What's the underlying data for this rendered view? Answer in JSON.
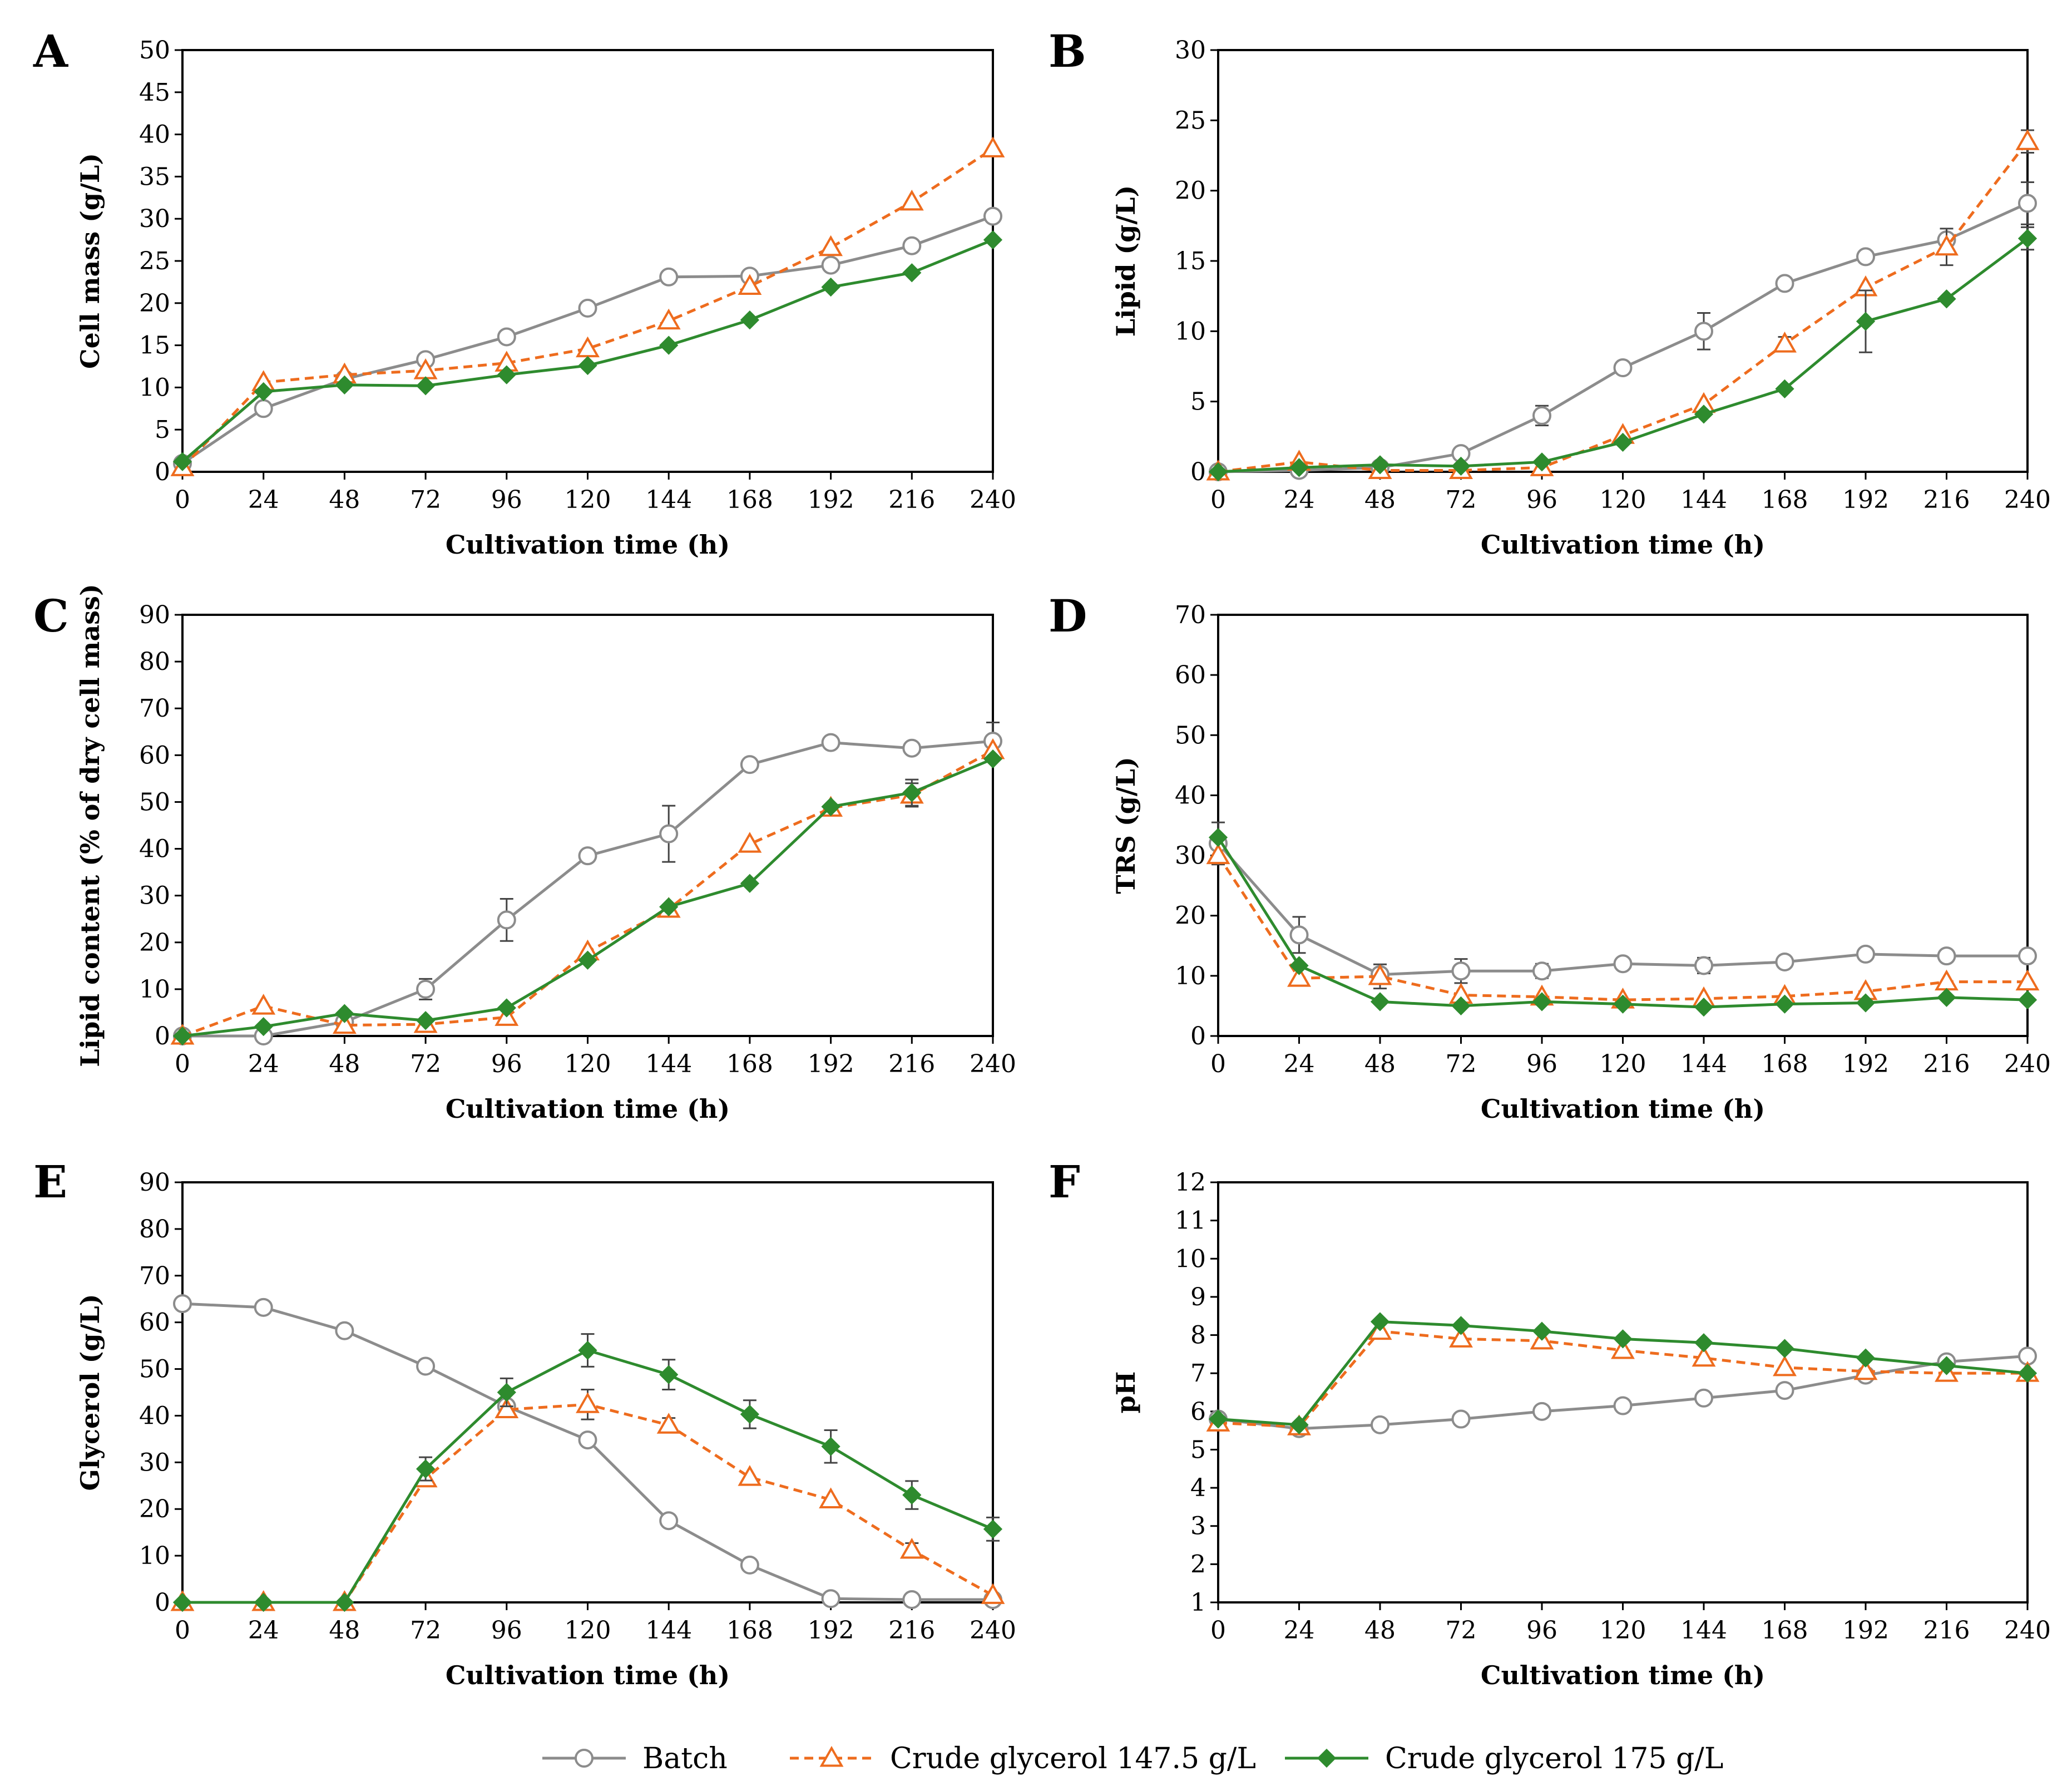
{
  "colors": {
    "batch": "#8c8c8c",
    "crude_147_5": "#ee6c1e",
    "crude_175": "#2e8b2e"
  },
  "legend": [
    {
      "key": "batch",
      "label": "Batch",
      "marker": "circle",
      "dash": "solid"
    },
    {
      "key": "crude_147_5",
      "label": "Crude glycerol 147.5 g/L",
      "marker": "triangle",
      "dash": "dashed"
    },
    {
      "key": "crude_175",
      "label": "Crude glycerol 175 g/L",
      "marker": "diamond",
      "dash": "solid"
    }
  ],
  "chart_data": [
    {
      "panel": "A",
      "type": "line",
      "xlabel": "Cultivation time (h)",
      "ylabel": "Cell mass (g/L)",
      "x": [
        0,
        24,
        48,
        72,
        96,
        120,
        144,
        168,
        192,
        216,
        240
      ],
      "xlim": [
        0,
        240
      ],
      "ylim": [
        0,
        50
      ],
      "yticks": [
        0,
        5,
        10,
        15,
        20,
        25,
        30,
        35,
        40,
        45,
        50
      ],
      "series": [
        {
          "key": "batch",
          "name": "Batch",
          "values": [
            1.0,
            7.5,
            11.0,
            13.3,
            16.0,
            19.4,
            23.1,
            23.2,
            24.5,
            26.8,
            30.3
          ]
        },
        {
          "key": "crude_147_5",
          "name": "Crude glycerol 147.5 g/L",
          "values": [
            0.5,
            10.6,
            11.5,
            12.0,
            12.9,
            14.6,
            17.9,
            22.0,
            26.6,
            32.0,
            38.3
          ]
        },
        {
          "key": "crude_175",
          "name": "Crude glycerol 175 g/L",
          "values": [
            1.2,
            9.5,
            10.3,
            10.2,
            11.5,
            12.6,
            15.0,
            18.0,
            21.9,
            23.6,
            27.5
          ]
        }
      ]
    },
    {
      "panel": "B",
      "type": "line",
      "xlabel": "Cultivation time (h)",
      "ylabel": "Lipid (g/L)",
      "x": [
        0,
        24,
        48,
        72,
        96,
        120,
        144,
        168,
        192,
        216,
        240
      ],
      "xlim": [
        0,
        240
      ],
      "ylim": [
        0,
        30
      ],
      "yticks": [
        0,
        5,
        10,
        15,
        20,
        25,
        30
      ],
      "series": [
        {
          "key": "batch",
          "name": "Batch",
          "values": [
            0.0,
            0.1,
            0.3,
            1.3,
            4.0,
            7.4,
            10.0,
            13.4,
            15.3,
            16.5,
            19.1
          ],
          "errors": [
            0,
            0,
            0,
            0,
            0.7,
            0,
            1.3,
            0.4,
            0,
            0.4,
            1.5
          ]
        },
        {
          "key": "crude_147_5",
          "name": "Crude glycerol 147.5 g/L",
          "values": [
            0.0,
            0.7,
            0.1,
            0.1,
            0.3,
            2.6,
            4.8,
            9.1,
            13.1,
            16.0,
            23.5
          ],
          "errors": [
            0,
            0,
            0,
            0,
            0,
            0,
            0,
            0.5,
            0,
            1.3,
            0.8
          ]
        },
        {
          "key": "crude_175",
          "name": "Crude glycerol 175 g/L",
          "values": [
            0.0,
            0.3,
            0.5,
            0.4,
            0.7,
            2.1,
            4.1,
            5.9,
            10.7,
            12.3,
            16.6
          ],
          "errors": [
            0,
            0,
            0,
            0,
            0,
            0,
            0,
            0,
            2.2,
            0,
            0.8
          ]
        }
      ]
    },
    {
      "panel": "C",
      "type": "line",
      "xlabel": "Cultivation time (h)",
      "ylabel": "Lipid content (% of dry cell mass)",
      "x": [
        0,
        24,
        48,
        72,
        96,
        120,
        144,
        168,
        192,
        216,
        240
      ],
      "xlim": [
        0,
        240
      ],
      "ylim": [
        0,
        90
      ],
      "yticks": [
        0,
        10,
        20,
        30,
        40,
        50,
        60,
        70,
        80,
        90
      ],
      "series": [
        {
          "key": "batch",
          "name": "Batch",
          "values": [
            0.0,
            0.0,
            3.0,
            10.0,
            24.8,
            38.5,
            43.2,
            58.0,
            62.7,
            61.5,
            63.0
          ],
          "errors": [
            0,
            0,
            0,
            2.2,
            4.5,
            0,
            6.0,
            1.2,
            0,
            0,
            4.0
          ]
        },
        {
          "key": "crude_147_5",
          "name": "Crude glycerol 147.5 g/L",
          "values": [
            0.0,
            6.4,
            2.3,
            2.5,
            4.0,
            18.0,
            27.1,
            41.0,
            48.7,
            51.5,
            61.0
          ],
          "errors": [
            0,
            0,
            0,
            0,
            0,
            0,
            0,
            0,
            0,
            2.5,
            0
          ]
        },
        {
          "key": "crude_175",
          "name": "Crude glycerol 175 g/L",
          "values": [
            0.0,
            2.0,
            4.8,
            3.3,
            6.0,
            16.2,
            27.6,
            32.6,
            49.0,
            52.0,
            59.2
          ],
          "errors": [
            0,
            0,
            0,
            0,
            0,
            0,
            0,
            0,
            0,
            2.8,
            0
          ]
        }
      ]
    },
    {
      "panel": "D",
      "type": "line",
      "xlabel": "Cultivation time (h)",
      "ylabel": "TRS (g/L)",
      "x": [
        0,
        24,
        48,
        72,
        96,
        120,
        144,
        168,
        192,
        216,
        240
      ],
      "xlim": [
        0,
        240
      ],
      "ylim": [
        0,
        70
      ],
      "yticks": [
        0,
        10,
        20,
        30,
        40,
        50,
        60,
        70
      ],
      "series": [
        {
          "key": "batch",
          "name": "Batch",
          "values": [
            32.0,
            16.8,
            10.2,
            10.8,
            10.8,
            12.0,
            11.7,
            12.3,
            13.6,
            13.3,
            13.3
          ],
          "errors": [
            3.5,
            3.0,
            0,
            2.0,
            1.2,
            0,
            1.3,
            0,
            0,
            0,
            0
          ]
        },
        {
          "key": "crude_147_5",
          "name": "Crude glycerol 147.5 g/L",
          "values": [
            30.0,
            9.6,
            9.9,
            6.8,
            6.5,
            6.0,
            6.2,
            6.6,
            7.4,
            9.0,
            9.0
          ],
          "errors": [
            0,
            0,
            2.0,
            0,
            0,
            0,
            0,
            0,
            0,
            0,
            0
          ]
        },
        {
          "key": "crude_175",
          "name": "Crude glycerol 175 g/L",
          "values": [
            33.0,
            11.7,
            5.7,
            5.0,
            5.7,
            5.3,
            4.8,
            5.3,
            5.5,
            6.4,
            6.0
          ]
        }
      ]
    },
    {
      "panel": "E",
      "type": "line",
      "xlabel": "Cultivation time (h)",
      "ylabel": "Glycerol (g/L)",
      "x": [
        0,
        24,
        48,
        72,
        96,
        120,
        144,
        168,
        192,
        216,
        240
      ],
      "xlim": [
        0,
        240
      ],
      "ylim": [
        0,
        90
      ],
      "yticks": [
        0,
        10,
        20,
        30,
        40,
        50,
        60,
        70,
        80,
        90
      ],
      "series": [
        {
          "key": "batch",
          "name": "Batch",
          "values": [
            64.0,
            63.2,
            58.2,
            50.6,
            42.0,
            34.8,
            17.5,
            8.0,
            0.8,
            0.6,
            0.6
          ]
        },
        {
          "key": "crude_147_5",
          "name": "Crude glycerol 147.5 g/L",
          "values": [
            0.0,
            0.0,
            0.0,
            26.5,
            41.3,
            42.4,
            38.0,
            26.8,
            22.0,
            11.2,
            1.5
          ],
          "errors": [
            0,
            0,
            0,
            0,
            0,
            3.2,
            1.5,
            0,
            0,
            1.5,
            0
          ]
        },
        {
          "key": "crude_175",
          "name": "Crude glycerol 175 g/L",
          "values": [
            0.0,
            0.0,
            0.0,
            28.6,
            45.0,
            54.0,
            48.8,
            40.3,
            33.4,
            23.0,
            15.7
          ],
          "errors": [
            0,
            0,
            0,
            2.5,
            3.0,
            3.5,
            3.2,
            3.0,
            3.5,
            3.0,
            2.5
          ]
        }
      ]
    },
    {
      "panel": "F",
      "type": "line",
      "xlabel": "Cultivation time (h)",
      "ylabel": "pH",
      "x": [
        0,
        24,
        48,
        72,
        96,
        120,
        144,
        168,
        192,
        216,
        240
      ],
      "xlim": [
        0,
        240
      ],
      "ylim": [
        1,
        12
      ],
      "yticks": [
        1,
        2,
        3,
        4,
        5,
        6,
        7,
        8,
        9,
        10,
        11,
        12
      ],
      "series": [
        {
          "key": "batch",
          "name": "Batch",
          "values": [
            5.8,
            5.55,
            5.65,
            5.8,
            6.0,
            6.15,
            6.35,
            6.55,
            6.95,
            7.3,
            7.45
          ]
        },
        {
          "key": "crude_147_5",
          "name": "Crude glycerol 147.5 g/L",
          "values": [
            5.7,
            5.6,
            8.1,
            7.9,
            7.85,
            7.6,
            7.4,
            7.15,
            7.05,
            7.0,
            7.0
          ]
        },
        {
          "key": "crude_175",
          "name": "Crude glycerol 175 g/L",
          "values": [
            5.8,
            5.65,
            8.35,
            8.25,
            8.1,
            7.9,
            7.8,
            7.65,
            7.4,
            7.2,
            7.0
          ]
        }
      ]
    }
  ]
}
